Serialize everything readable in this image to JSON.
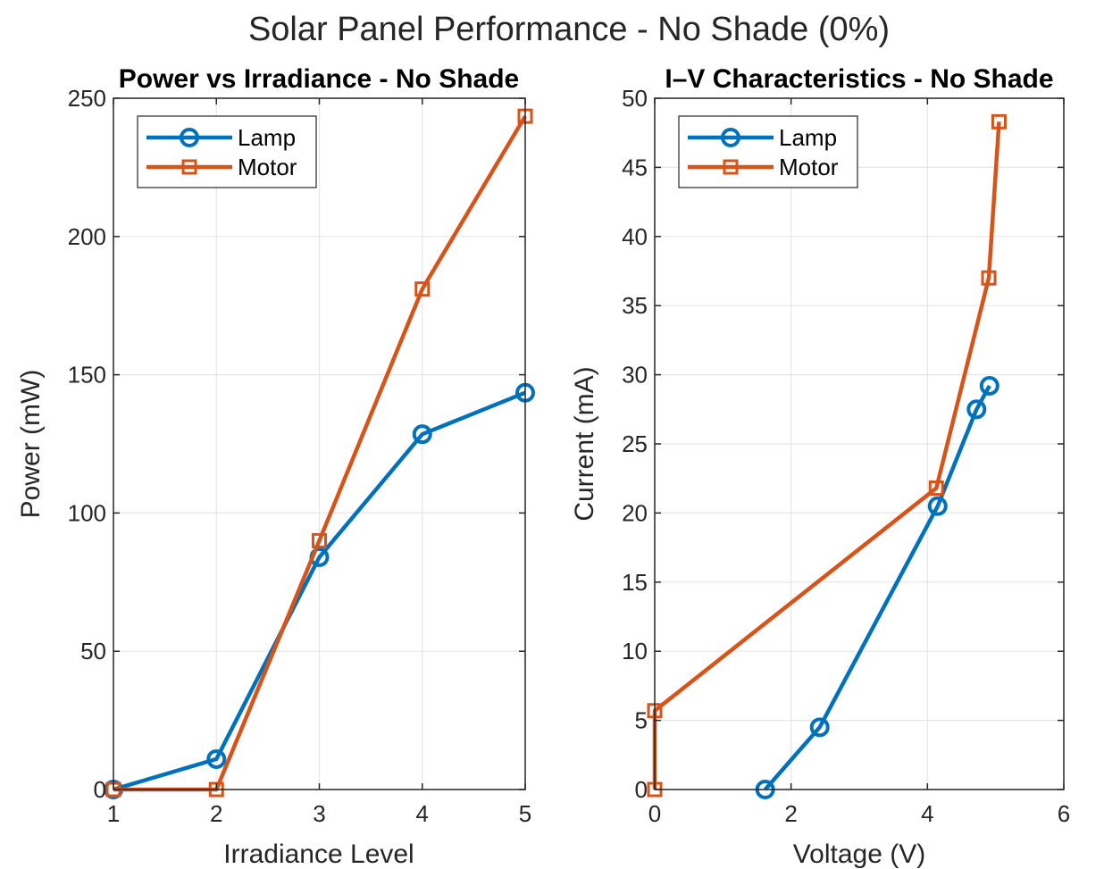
{
  "figure": {
    "suptitle": "Solar Panel Performance - No Shade (0%)"
  },
  "chart_data": [
    {
      "type": "line",
      "title": "Power vs Irradiance - No Shade",
      "xlabel": "Irradiance Level",
      "ylabel": "Power (mW)",
      "xlim": [
        1,
        5
      ],
      "ylim": [
        0,
        250
      ],
      "xticks": [
        1,
        2,
        3,
        4,
        5
      ],
      "yticks": [
        0,
        50,
        100,
        150,
        200,
        250
      ],
      "grid": true,
      "legend": "top-left",
      "series": [
        {
          "name": "Lamp",
          "marker": "circle",
          "color": "#0072BD",
          "x": [
            1,
            2,
            3,
            4,
            5
          ],
          "y": [
            0,
            11,
            84,
            128.5,
            143.5
          ]
        },
        {
          "name": "Motor",
          "marker": "square",
          "color": "#D95319",
          "x": [
            1,
            2,
            3,
            4,
            5
          ],
          "y": [
            0,
            0,
            90,
            181,
            243.5
          ]
        }
      ]
    },
    {
      "type": "line",
      "title": "I–V Characteristics - No Shade",
      "xlabel": "Voltage (V)",
      "ylabel": "Current (mA)",
      "xlim": [
        0,
        6
      ],
      "ylim": [
        0,
        50
      ],
      "xticks": [
        0,
        2,
        4,
        6
      ],
      "yticks": [
        0,
        5,
        10,
        15,
        20,
        25,
        30,
        35,
        40,
        45,
        50
      ],
      "grid": true,
      "legend": "top-left",
      "series": [
        {
          "name": "Lamp",
          "marker": "circle",
          "color": "#0072BD",
          "x": [
            1.62,
            2.42,
            4.15,
            4.72,
            4.91
          ],
          "y": [
            0,
            4.5,
            20.5,
            27.5,
            29.2
          ]
        },
        {
          "name": "Motor",
          "marker": "square",
          "color": "#D95319",
          "x": [
            0,
            0,
            4.13,
            4.9,
            5.05
          ],
          "y": [
            0,
            5.7,
            21.8,
            37,
            48.3
          ]
        }
      ]
    }
  ]
}
